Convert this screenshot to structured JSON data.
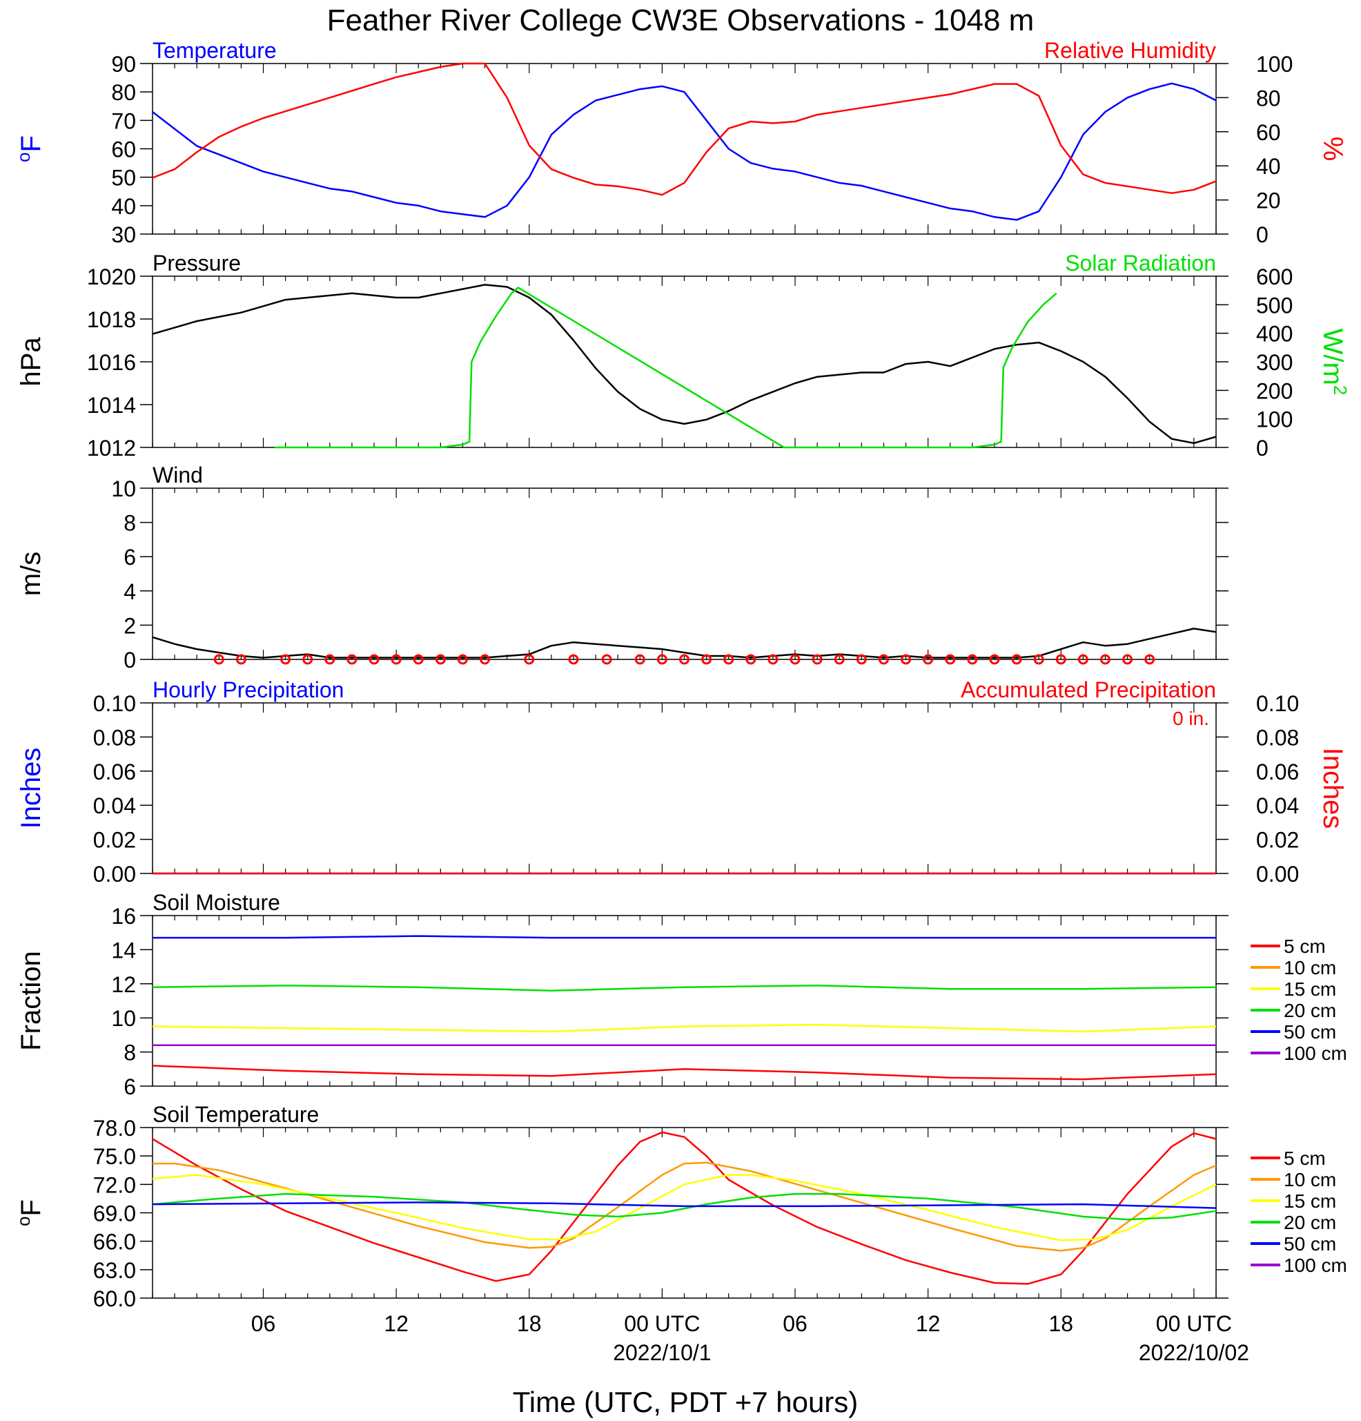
{
  "title": "Feather River College CW3E Observations - 1048 m",
  "x_axis": {
    "label": "Time (UTC, PDT +7 hours)",
    "range_hours": [
      0,
      48
    ],
    "ticks": [
      {
        "h": 5,
        "label": "06"
      },
      {
        "h": 11,
        "label": "12"
      },
      {
        "h": 17,
        "label": "18"
      },
      {
        "h": 23,
        "label": "00 UTC"
      },
      {
        "h": 29,
        "label": "06"
      },
      {
        "h": 35,
        "label": "12"
      },
      {
        "h": 41,
        "label": "18"
      },
      {
        "h": 47,
        "label": "00 UTC"
      }
    ],
    "date_labels": [
      {
        "h": 23,
        "label": "2022/10/1"
      },
      {
        "h": 47,
        "label": "2022/10/02"
      }
    ]
  },
  "colors": {
    "temperature": "#0000ff",
    "humidity": "#ff0000",
    "pressure": "#000000",
    "solar": "#00e000",
    "wind": "#000000",
    "barbs": "#ff0000",
    "hourly_precip": "#0000ff",
    "accum_precip": "#ff0000",
    "depth": {
      "5 cm": "#ff0000",
      "10 cm": "#ff9900",
      "15 cm": "#ffff00",
      "20 cm": "#00e000",
      "50 cm": "#0000ff",
      "100 cm": "#9900cc"
    }
  },
  "chart_data": [
    {
      "type": "line",
      "panel": "temperature_humidity",
      "left_title": "Temperature",
      "right_title": "Relative Humidity",
      "left_axis": {
        "label": "oF",
        "ylim": [
          30,
          90
        ],
        "ticks": [
          "30",
          "40",
          "50",
          "60",
          "70",
          "80",
          "90"
        ]
      },
      "right_axis": {
        "label": "%",
        "ylim": [
          0,
          100
        ],
        "ticks": [
          "0",
          "20",
          "40",
          "60",
          "80",
          "100"
        ]
      },
      "series": [
        {
          "name": "Temperature",
          "axis": "left",
          "x": [
            0,
            1,
            2,
            3,
            4,
            5,
            6,
            7,
            8,
            9,
            10,
            11,
            12,
            13,
            14,
            15,
            16,
            17,
            18,
            19,
            20,
            21,
            22,
            23,
            24,
            25,
            26,
            27,
            28,
            29,
            30,
            31,
            32,
            33,
            34,
            35,
            36,
            37,
            38,
            39,
            40,
            41,
            42,
            43,
            44,
            45,
            46,
            47,
            48
          ],
          "y": [
            73,
            67,
            61,
            58,
            55,
            52,
            50,
            48,
            46,
            45,
            43,
            41,
            40,
            38,
            37,
            36,
            40,
            50,
            65,
            72,
            77,
            79,
            81,
            82,
            80,
            70,
            60,
            55,
            53,
            52,
            50,
            48,
            47,
            45,
            43,
            41,
            39,
            38,
            36,
            35,
            38,
            50,
            65,
            73,
            78,
            81,
            83,
            81,
            77
          ]
        },
        {
          "name": "Relative Humidity",
          "axis": "right",
          "x": [
            0,
            1,
            2,
            3,
            4,
            5,
            6,
            7,
            8,
            9,
            10,
            11,
            12,
            13,
            14,
            15,
            16,
            17,
            18,
            19,
            20,
            21,
            22,
            23,
            24,
            25,
            26,
            27,
            28,
            29,
            30,
            31,
            32,
            33,
            34,
            35,
            36,
            37,
            38,
            39,
            40,
            41,
            42,
            43,
            44,
            45,
            46,
            47,
            48
          ],
          "y": [
            33,
            38,
            48,
            57,
            63,
            68,
            72,
            76,
            80,
            84,
            88,
            92,
            95,
            98,
            100,
            100,
            80,
            52,
            38,
            33,
            29,
            28,
            26,
            23,
            30,
            48,
            62,
            66,
            65,
            66,
            70,
            72,
            74,
            76,
            78,
            80,
            82,
            85,
            88,
            88,
            81,
            52,
            35,
            30,
            28,
            26,
            24,
            26,
            31
          ]
        }
      ]
    },
    {
      "type": "line",
      "panel": "pressure_solar",
      "left_title": "Pressure",
      "right_title": "Solar Radiation",
      "left_axis": {
        "label": "hPa",
        "ylim": [
          1012,
          1020
        ],
        "ticks": [
          "1012",
          "1014",
          "1016",
          "1018",
          "1020"
        ]
      },
      "right_axis": {
        "label": "W/m2",
        "ylim": [
          0,
          600
        ],
        "ticks": [
          "0",
          "100",
          "200",
          "300",
          "400",
          "500",
          "600"
        ]
      },
      "series": [
        {
          "name": "Pressure",
          "axis": "left",
          "x": [
            0,
            1,
            2,
            3,
            4,
            5,
            6,
            7,
            8,
            9,
            10,
            11,
            12,
            13,
            14,
            15,
            16,
            17,
            18,
            19,
            20,
            21,
            22,
            23,
            24,
            25,
            26,
            27,
            28,
            29,
            30,
            31,
            32,
            33,
            34,
            35,
            36,
            37,
            38,
            39,
            40,
            41,
            42,
            43,
            44,
            45,
            46,
            47,
            48
          ],
          "y": [
            1017.3,
            1017.6,
            1017.9,
            1018.1,
            1018.3,
            1018.6,
            1018.9,
            1019.0,
            1019.1,
            1019.2,
            1019.1,
            1019.0,
            1019.0,
            1019.2,
            1019.4,
            1019.6,
            1019.5,
            1019.0,
            1018.2,
            1017.0,
            1015.7,
            1014.6,
            1013.8,
            1013.3,
            1013.1,
            1013.3,
            1013.7,
            1014.2,
            1014.6,
            1015.0,
            1015.3,
            1015.4,
            1015.5,
            1015.5,
            1015.9,
            1016.0,
            1015.8,
            1016.2,
            1016.6,
            1016.8,
            1016.9,
            1016.5,
            1016.0,
            1015.3,
            1014.3,
            1013.2,
            1012.4,
            1012.2,
            1012.5
          ]
        },
        {
          "name": "Solar Radiation",
          "axis": "right",
          "x": [
            5.5,
            8,
            10,
            13,
            14,
            14.3,
            14.4,
            14.8,
            15.5,
            16.2,
            16.5,
            28.5,
            31,
            34,
            37,
            38,
            38.3,
            38.4,
            38.8,
            39.5,
            40.2,
            40.8
          ],
          "y": [
            0,
            0,
            0,
            0,
            10,
            20,
            300,
            370,
            460,
            540,
            560,
            0,
            0,
            0,
            0,
            10,
            20,
            280,
            350,
            440,
            500,
            540
          ]
        }
      ]
    },
    {
      "type": "line",
      "panel": "wind",
      "left_title": "Wind",
      "left_axis": {
        "label": "m/s",
        "ylim": [
          0,
          10
        ],
        "ticks": [
          "0",
          "2",
          "4",
          "6",
          "8",
          "10"
        ]
      },
      "series": [
        {
          "name": "Wind",
          "axis": "left",
          "x": [
            0,
            1,
            2,
            3,
            4,
            5,
            6,
            7,
            8,
            9,
            10,
            11,
            12,
            13,
            14,
            15,
            16,
            17,
            18,
            19,
            20,
            21,
            22,
            23,
            24,
            25,
            26,
            27,
            28,
            29,
            30,
            31,
            32,
            33,
            34,
            35,
            36,
            37,
            38,
            39,
            40,
            41,
            42,
            43,
            44,
            45,
            46,
            47,
            48
          ],
          "y": [
            1.3,
            0.9,
            0.6,
            0.4,
            0.2,
            0.1,
            0.2,
            0.3,
            0.1,
            0.1,
            0.1,
            0.1,
            0.1,
            0.1,
            0.1,
            0.1,
            0.2,
            0.3,
            0.8,
            1.0,
            0.9,
            0.8,
            0.7,
            0.6,
            0.4,
            0.2,
            0.2,
            0.1,
            0.2,
            0.3,
            0.2,
            0.3,
            0.2,
            0.1,
            0.2,
            0.1,
            0.1,
            0.1,
            0.1,
            0.1,
            0.2,
            0.6,
            1.0,
            0.8,
            0.9,
            1.2,
            1.5,
            1.8,
            1.6
          ]
        }
      ],
      "barb_hours": [
        3,
        4,
        6,
        7,
        8,
        9,
        10,
        11,
        12,
        13,
        14,
        15,
        17,
        19,
        20.5,
        22,
        23,
        24,
        25,
        26,
        27,
        28,
        29,
        30,
        31,
        32,
        33,
        34,
        35,
        36,
        37,
        38,
        39,
        40,
        41,
        42,
        43,
        44,
        45
      ]
    },
    {
      "type": "line",
      "panel": "precipitation",
      "left_title": "Hourly Precipitation",
      "right_title": "Accumulated Precipitation",
      "total_label": "0 in.",
      "left_axis": {
        "label": "Inches",
        "ylim": [
          0,
          0.1
        ],
        "ticks": [
          "0.00",
          "0.02",
          "0.04",
          "0.06",
          "0.08",
          "0.10"
        ]
      },
      "right_axis": {
        "label": "Inches",
        "ylim": [
          0,
          0.1
        ],
        "ticks": [
          "0.00",
          "0.02",
          "0.04",
          "0.06",
          "0.08",
          "0.10"
        ]
      },
      "series": [
        {
          "name": "Hourly Precipitation",
          "axis": "left",
          "x": [
            0,
            48
          ],
          "y": [
            0,
            0
          ]
        },
        {
          "name": "Accumulated Precipitation",
          "axis": "right",
          "x": [
            0,
            48
          ],
          "y": [
            0,
            0
          ]
        }
      ]
    },
    {
      "type": "line",
      "panel": "soil_moisture",
      "left_title": "Soil Moisture",
      "left_axis": {
        "label": "Fraction",
        "ylim": [
          6,
          16
        ],
        "ticks": [
          "6",
          "8",
          "10",
          "12",
          "14",
          "16"
        ]
      },
      "series": [
        {
          "name": "5 cm",
          "axis": "left",
          "x": [
            0,
            6,
            12,
            18,
            24,
            30,
            36,
            42,
            48
          ],
          "y": [
            7.2,
            6.9,
            6.7,
            6.6,
            7.0,
            6.8,
            6.5,
            6.4,
            6.7
          ]
        },
        {
          "name": "10 cm",
          "axis": "left",
          "x": [
            0,
            48
          ],
          "y": [
            null,
            null
          ]
        },
        {
          "name": "15 cm",
          "axis": "left",
          "x": [
            0,
            6,
            12,
            18,
            24,
            30,
            36,
            42,
            48
          ],
          "y": [
            9.5,
            9.4,
            9.3,
            9.2,
            9.5,
            9.6,
            9.4,
            9.2,
            9.5
          ]
        },
        {
          "name": "20 cm",
          "axis": "left",
          "x": [
            0,
            6,
            12,
            18,
            24,
            30,
            36,
            42,
            48
          ],
          "y": [
            11.8,
            11.9,
            11.8,
            11.6,
            11.8,
            11.9,
            11.7,
            11.7,
            11.8
          ]
        },
        {
          "name": "50 cm",
          "axis": "left",
          "x": [
            0,
            6,
            12,
            18,
            24,
            30,
            36,
            42,
            48
          ],
          "y": [
            14.7,
            14.7,
            14.8,
            14.7,
            14.7,
            14.7,
            14.7,
            14.7,
            14.7
          ]
        },
        {
          "name": "100 cm",
          "axis": "left",
          "x": [
            0,
            48
          ],
          "y": [
            8.4,
            8.4
          ]
        }
      ]
    },
    {
      "type": "line",
      "panel": "soil_temperature",
      "left_title": "Soil Temperature",
      "left_axis": {
        "label": "oF",
        "ylim": [
          60,
          78
        ],
        "ticks": [
          "60.0",
          "63.0",
          "66.0",
          "69.0",
          "72.0",
          "75.0",
          "78.0"
        ]
      },
      "series": [
        {
          "name": "5 cm",
          "axis": "left",
          "x": [
            0,
            2,
            4,
            6,
            8,
            10,
            12,
            14,
            15.5,
            17,
            18,
            20,
            21,
            22,
            23,
            24,
            25,
            26,
            28,
            30,
            32,
            34,
            36,
            38,
            39.5,
            41,
            42,
            44,
            46,
            47,
            48
          ],
          "y": [
            76.8,
            74,
            71.5,
            69.2,
            67.5,
            65.8,
            64.3,
            62.8,
            61.8,
            62.5,
            65,
            71,
            74,
            76.5,
            77.5,
            77,
            75,
            72.5,
            69.8,
            67.5,
            65.7,
            64,
            62.7,
            61.6,
            61.5,
            62.5,
            65,
            71,
            76,
            77.4,
            76.8
          ]
        },
        {
          "name": "10 cm",
          "axis": "left",
          "x": [
            0,
            1,
            3,
            6,
            9,
            12,
            15,
            17,
            18,
            19,
            21,
            23,
            24,
            25,
            27,
            30,
            33,
            36,
            39,
            41,
            42,
            43,
            45,
            47,
            48
          ],
          "y": [
            74.2,
            74.2,
            73.5,
            71.6,
            69.6,
            67.6,
            65.9,
            65.3,
            65.4,
            66.3,
            69.6,
            73,
            74.2,
            74.3,
            73.4,
            71.4,
            69.4,
            67.4,
            65.5,
            65,
            65.3,
            66.3,
            69.7,
            73,
            74
          ]
        },
        {
          "name": "15 cm",
          "axis": "left",
          "x": [
            0,
            2,
            5,
            8,
            11,
            14,
            17,
            18.5,
            20,
            22,
            24,
            26,
            27,
            29,
            32,
            35,
            38,
            41,
            42.5,
            44,
            46,
            48
          ],
          "y": [
            72.6,
            73,
            72,
            70.5,
            69,
            67.4,
            66.2,
            66.2,
            67,
            69.5,
            72,
            73,
            73,
            72.4,
            71,
            69.3,
            67.5,
            66.1,
            66.2,
            67.2,
            69.7,
            72
          ]
        },
        {
          "name": "20 cm",
          "axis": "left",
          "x": [
            0,
            3,
            6,
            10,
            14,
            17,
            19,
            21,
            23,
            25,
            27,
            29,
            31,
            35,
            39,
            42,
            44,
            46,
            48
          ],
          "y": [
            69.9,
            70.5,
            71,
            70.7,
            70.1,
            69.3,
            68.8,
            68.6,
            69,
            69.9,
            70.6,
            71,
            71,
            70.5,
            69.6,
            68.6,
            68.3,
            68.5,
            69.2
          ]
        },
        {
          "name": "50 cm",
          "axis": "left",
          "x": [
            0,
            6,
            12,
            18,
            24,
            30,
            36,
            42,
            48
          ],
          "y": [
            69.9,
            70,
            70.1,
            70,
            69.7,
            69.7,
            69.8,
            69.9,
            69.5
          ]
        },
        {
          "name": "100 cm",
          "axis": "left",
          "x": [
            0,
            48
          ],
          "y": [
            null,
            null
          ]
        }
      ]
    }
  ],
  "legends": {
    "soil_moisture": [
      "5 cm",
      "10 cm",
      "15 cm",
      "20 cm",
      "50 cm",
      "100 cm"
    ],
    "soil_temperature": [
      "5 cm",
      "10 cm",
      "15 cm",
      "20 cm",
      "50 cm",
      "100 cm"
    ]
  }
}
